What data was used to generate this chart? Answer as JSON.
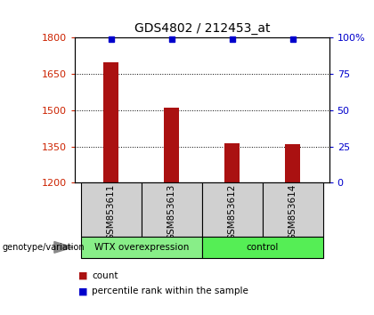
{
  "title": "GDS4802 / 212453_at",
  "samples": [
    "GSM853611",
    "GSM853613",
    "GSM853612",
    "GSM853614"
  ],
  "count_values": [
    1700,
    1510,
    1365,
    1358
  ],
  "percentile_values": [
    99,
    99,
    99,
    99
  ],
  "ylim_left": [
    1200,
    1800
  ],
  "ylim_right": [
    0,
    100
  ],
  "yticks_left": [
    1200,
    1350,
    1500,
    1650,
    1800
  ],
  "yticks_right": [
    0,
    25,
    50,
    75,
    100
  ],
  "ytick_labels_right": [
    "0",
    "25",
    "50",
    "75",
    "100%"
  ],
  "bar_color": "#aa1111",
  "dot_color": "#0000cc",
  "groups": [
    {
      "label": "WTX overexpression",
      "indices": [
        0,
        1
      ],
      "color": "#88ee88"
    },
    {
      "label": "control",
      "indices": [
        2,
        3
      ],
      "color": "#55ee55"
    }
  ],
  "group_label": "genotype/variation",
  "legend_items": [
    {
      "color": "#aa1111",
      "label": "count"
    },
    {
      "color": "#0000cc",
      "label": "percentile rank within the sample"
    }
  ],
  "left_tick_color": "#cc2200",
  "right_tick_color": "#0000cc",
  "bar_width": 0.25,
  "sample_box_color": "#d0d0d0",
  "title_fontsize": 10,
  "tick_fontsize": 8,
  "label_fontsize": 7,
  "legend_fontsize": 7.5
}
